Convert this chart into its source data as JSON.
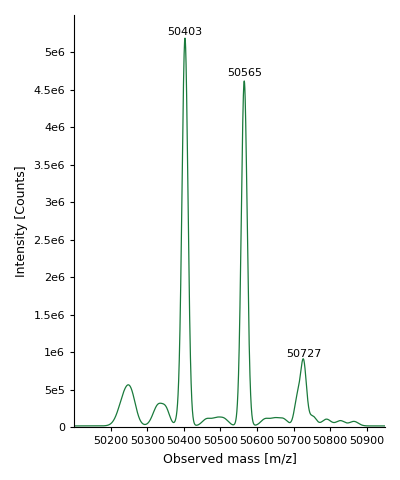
{
  "title": "",
  "xlabel": "Observed mass [m/z]",
  "ylabel": "Intensity [Counts]",
  "line_color": "#1a7a3c",
  "background_color": "#ffffff",
  "xlim": [
    50100,
    50950
  ],
  "ylim": [
    0,
    5500000
  ],
  "peaks": [
    {
      "mass": 50403,
      "intensity": 5150000,
      "label": "50403"
    },
    {
      "mass": 50565,
      "intensity": 4600000,
      "label": "50565"
    },
    {
      "mass": 50727,
      "intensity": 850000,
      "label": "50727"
    }
  ],
  "yticks": [
    0,
    500000,
    1000000,
    1500000,
    2000000,
    2500000,
    3000000,
    3500000,
    4000000,
    4500000,
    5000000
  ],
  "ytick_labels": [
    "0",
    "5e5",
    "1e6",
    "1.5e6",
    "2e6",
    "2.5e6",
    "3e6",
    "3.5e6",
    "4e6",
    "4.5e6",
    "5e6"
  ],
  "xticks": [
    50200,
    50300,
    50400,
    50500,
    50600,
    50700,
    50800,
    50900
  ]
}
